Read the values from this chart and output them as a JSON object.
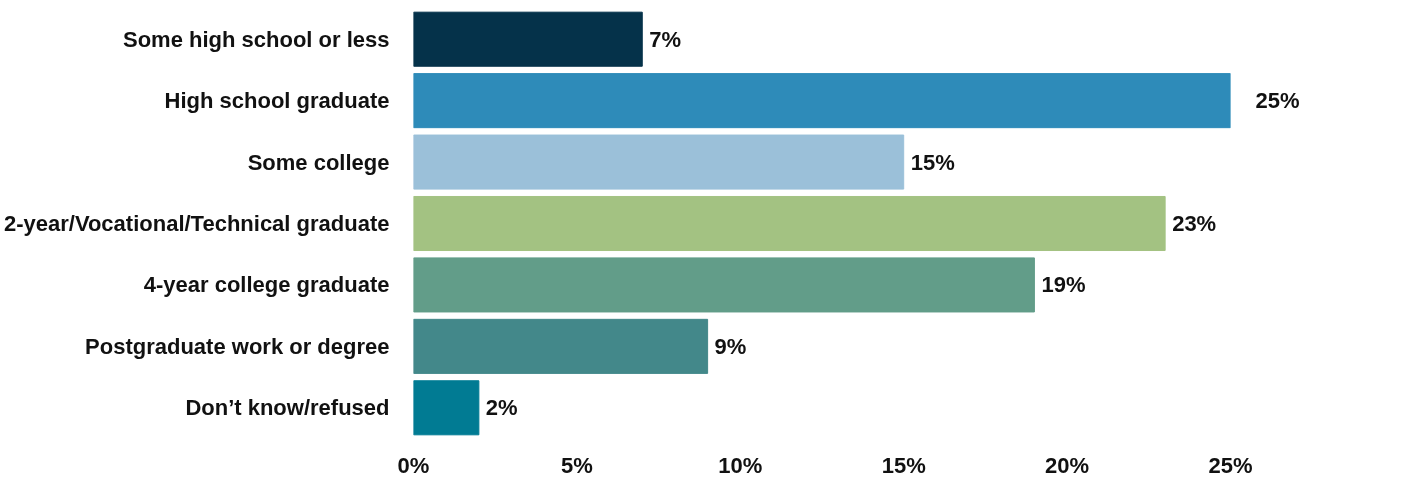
{
  "chart_data": {
    "type": "bar",
    "orientation": "horizontal",
    "categories": [
      "Some high school or less",
      "High school graduate",
      "Some college",
      "2-year/Vocational/Technical graduate",
      "4-year college graduate",
      "Postgraduate work or degree",
      "Don’t know/refused"
    ],
    "values": [
      7,
      25,
      15,
      23,
      19,
      9,
      2
    ],
    "value_labels": [
      "7%",
      "25%",
      "15%",
      "23%",
      "19%",
      "9%",
      "2%"
    ],
    "colors": [
      "#05324a",
      "#2e8bb9",
      "#9bc0d9",
      "#a3c282",
      "#629d89",
      "#43888a",
      "#017b93"
    ],
    "xlim": [
      0,
      25
    ],
    "xticks": [
      {
        "value": 0,
        "label": "0%"
      },
      {
        "value": 5,
        "label": "5%"
      },
      {
        "value": 10,
        "label": "10%"
      },
      {
        "value": 15,
        "label": "15%"
      },
      {
        "value": 20,
        "label": "20%"
      },
      {
        "value": 25,
        "label": "25%"
      }
    ],
    "grid": false,
    "legend": false
  }
}
